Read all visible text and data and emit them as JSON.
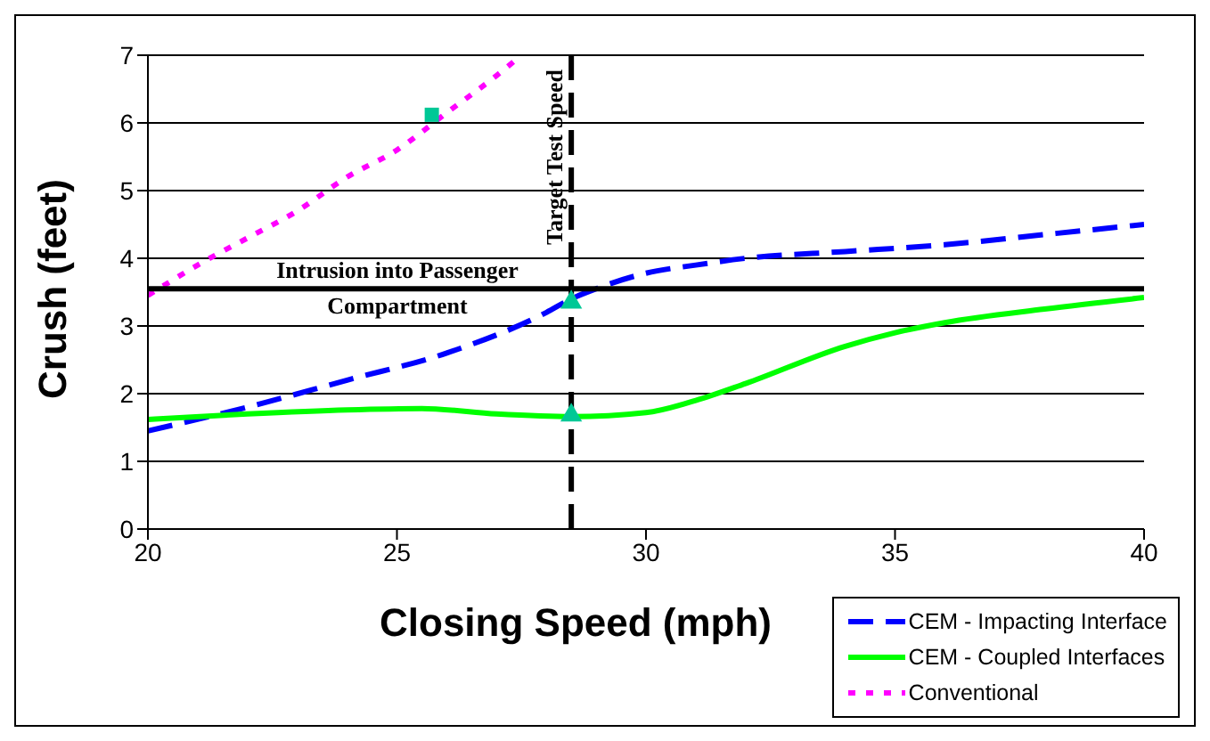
{
  "chart_data": {
    "type": "line",
    "xlabel": "Closing Speed (mph)",
    "ylabel": "Crush (feet)",
    "xlim": [
      20,
      40
    ],
    "xticks": [
      20,
      25,
      30,
      35,
      40
    ],
    "ylim": [
      0,
      7
    ],
    "yticks": [
      0,
      1,
      2,
      3,
      4,
      5,
      6,
      7
    ],
    "grid": "y",
    "legend": "bottom right",
    "marker": "none",
    "series": [
      {
        "name": "CEM - Impacting Interface",
        "color": "#0000ff",
        "line_style": "dashed",
        "x": [
          20,
          22,
          24,
          26,
          28,
          28.5,
          29,
          30,
          31,
          32,
          34,
          36,
          38,
          40
        ],
        "values": [
          1.45,
          1.8,
          2.2,
          2.6,
          3.2,
          3.4,
          3.55,
          3.78,
          3.9,
          4.0,
          4.1,
          4.2,
          4.35,
          4.5
        ]
      },
      {
        "name": "CEM - Coupled Interfaces",
        "color": "#00ff00",
        "line_style": "solid",
        "x": [
          20,
          22,
          24,
          25.5,
          27,
          28.5,
          30,
          31,
          32,
          34,
          35,
          36,
          38,
          40
        ],
        "values": [
          1.62,
          1.7,
          1.76,
          1.78,
          1.7,
          1.66,
          1.72,
          1.9,
          2.15,
          2.7,
          2.9,
          3.05,
          3.25,
          3.42
        ]
      },
      {
        "name": "Conventional",
        "color": "#ff00ff",
        "line_style": "dotted",
        "x": [
          20,
          21,
          22,
          23,
          24,
          25,
          26,
          27,
          27.5
        ],
        "values": [
          3.45,
          3.9,
          4.3,
          4.7,
          5.2,
          5.6,
          6.15,
          6.7,
          7.0
        ]
      },
      {
        "type": "scatter",
        "color": "#00c896",
        "marker": "square",
        "x": [
          25.7
        ],
        "values": [
          6.12
        ]
      },
      {
        "type": "scatter",
        "color": "#00c896",
        "marker": "triangle",
        "x": [
          28.5,
          28.5
        ],
        "values": [
          3.35,
          1.68
        ]
      }
    ],
    "ref_lines": [
      {
        "axis": "y",
        "value": 3.55,
        "label": "Intrusion into Passenger Compartment",
        "color": "#000000",
        "line_style": "solid"
      },
      {
        "axis": "x",
        "value": 28.5,
        "label": "Target Test Speed",
        "color": "#000000",
        "line_style": "dashed"
      }
    ]
  }
}
